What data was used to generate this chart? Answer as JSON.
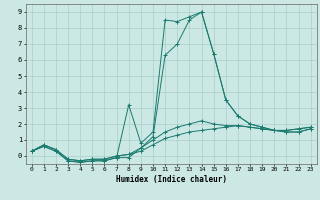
{
  "xlabel": "Humidex (Indice chaleur)",
  "background_color": "#cce8e4",
  "grid_color": "#aacfcb",
  "line_color": "#1a7a6e",
  "xlim": [
    -0.5,
    23.5
  ],
  "ylim": [
    -0.5,
    9.5
  ],
  "xticks": [
    0,
    1,
    2,
    3,
    4,
    5,
    6,
    7,
    8,
    9,
    10,
    11,
    12,
    13,
    14,
    15,
    16,
    17,
    18,
    19,
    20,
    21,
    22,
    23
  ],
  "yticks": [
    0,
    1,
    2,
    3,
    4,
    5,
    6,
    7,
    8,
    9
  ],
  "series": [
    [
      0.3,
      0.7,
      0.4,
      -0.2,
      -0.3,
      -0.2,
      -0.2,
      0.0,
      0.1,
      0.3,
      0.7,
      1.1,
      1.3,
      1.5,
      1.6,
      1.7,
      1.8,
      1.9,
      1.8,
      1.7,
      1.6,
      1.6,
      1.7,
      1.8
    ],
    [
      0.3,
      0.7,
      0.4,
      -0.2,
      -0.3,
      -0.2,
      -0.2,
      0.0,
      0.1,
      0.5,
      1.0,
      1.5,
      1.8,
      2.0,
      2.2,
      2.0,
      1.9,
      1.9,
      1.8,
      1.7,
      1.6,
      1.6,
      1.7,
      1.8
    ],
    [
      0.3,
      0.6,
      0.3,
      -0.3,
      -0.4,
      -0.3,
      -0.3,
      -0.1,
      3.2,
      0.8,
      1.5,
      8.5,
      8.4,
      8.7,
      9.0,
      6.4,
      3.5,
      2.5,
      2.0,
      1.8,
      1.6,
      1.5,
      1.5,
      1.7
    ],
    [
      0.3,
      0.6,
      0.3,
      -0.3,
      -0.4,
      -0.3,
      -0.3,
      -0.1,
      -0.1,
      0.5,
      1.2,
      6.3,
      7.0,
      8.5,
      9.0,
      6.4,
      3.5,
      2.5,
      2.0,
      1.8,
      1.6,
      1.5,
      1.5,
      1.7
    ]
  ]
}
